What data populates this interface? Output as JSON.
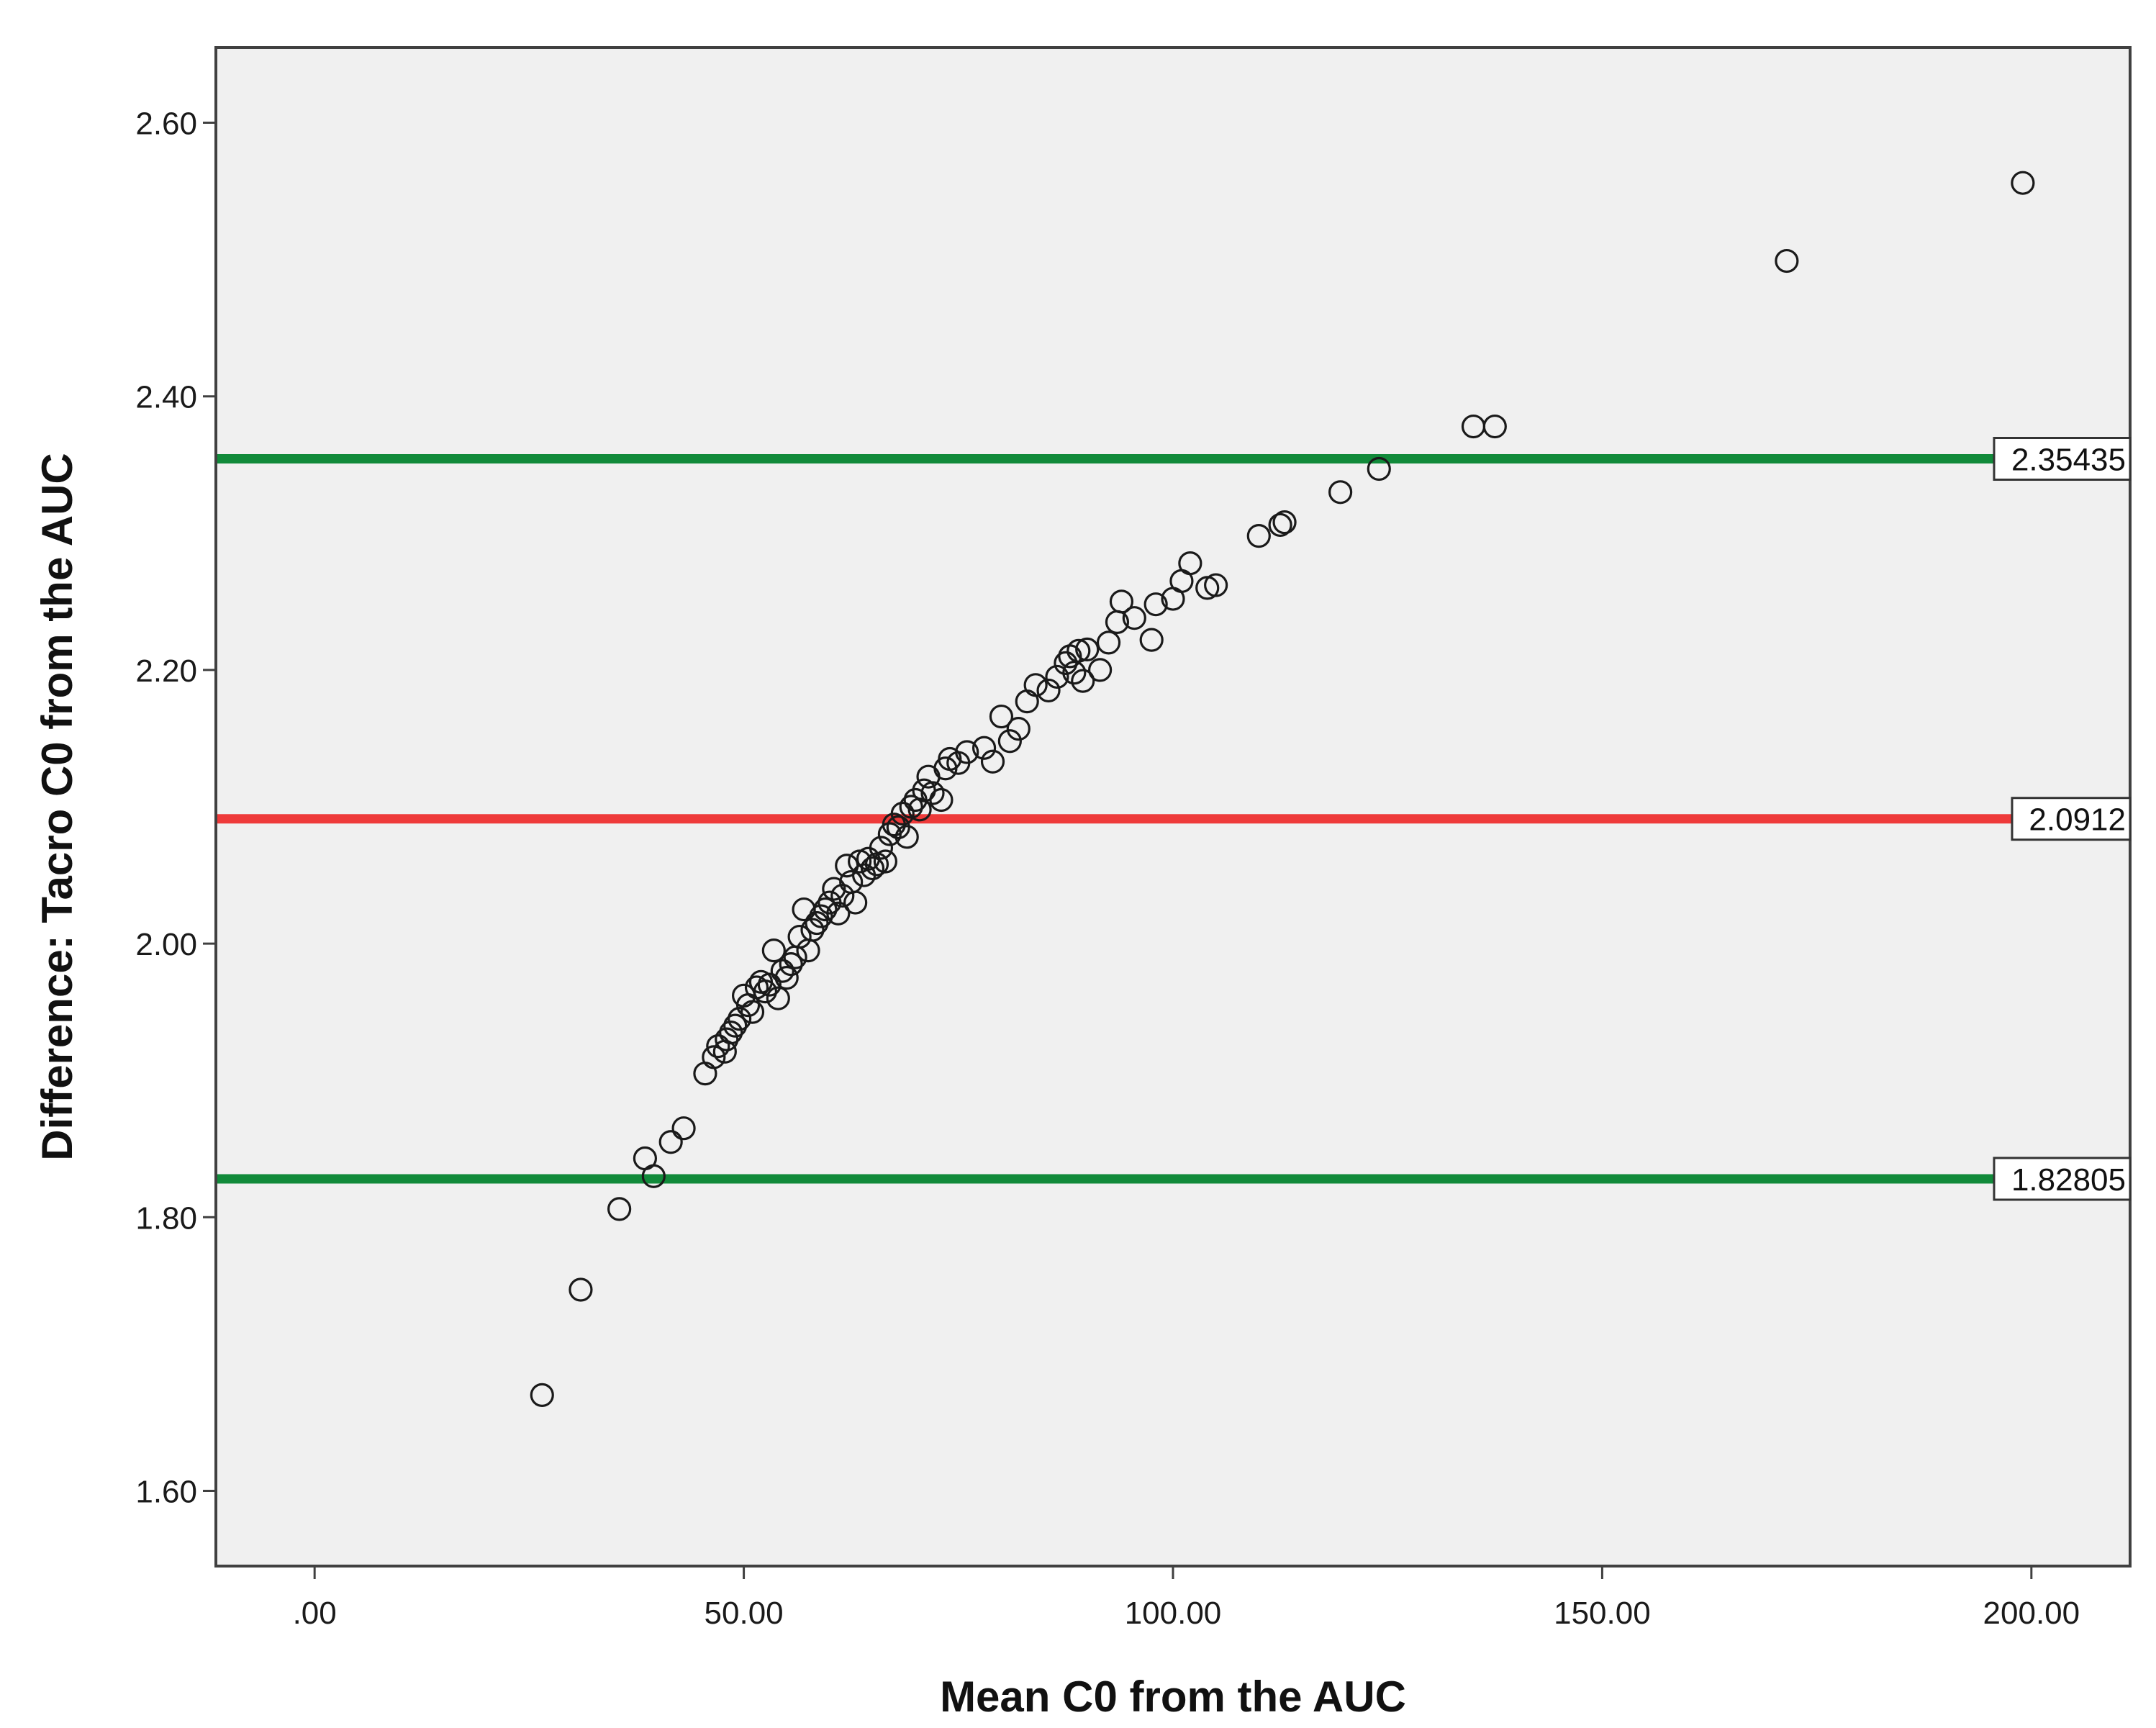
{
  "chart_data": {
    "type": "scatter",
    "title": "",
    "xlabel": "Mean C0 from the AUC",
    "ylabel": "Difference: Tacro C0 from the AUC",
    "xlim": [
      -11.5,
      211.5
    ],
    "ylim": [
      1.545,
      2.655
    ],
    "x_ticks": [
      0,
      50,
      100,
      150,
      200
    ],
    "x_tick_labels": [
      ".00",
      "50.00",
      "100.00",
      "150.00",
      "200.00"
    ],
    "y_ticks": [
      1.6,
      1.8,
      2.0,
      2.2,
      2.4,
      2.6
    ],
    "y_tick_labels": [
      "1.60",
      "1.80",
      "2.00",
      "2.20",
      "2.40",
      "2.60"
    ],
    "grid": false,
    "background_color": "#f0f0f0",
    "marker": "open-circle",
    "reference_lines": [
      {
        "value": 2.35435,
        "label": "2.35435",
        "color": "#118a3a"
      },
      {
        "value": 2.0912,
        "label": "2.0912",
        "color": "#ee3a3a"
      },
      {
        "value": 1.82805,
        "label": "1.82805",
        "color": "#118a3a"
      }
    ],
    "points": [
      [
        26.5,
        1.67
      ],
      [
        31.0,
        1.747
      ],
      [
        35.5,
        1.806
      ],
      [
        38.5,
        1.843
      ],
      [
        39.5,
        1.83
      ],
      [
        41.5,
        1.855
      ],
      [
        43.0,
        1.865
      ],
      [
        45.5,
        1.905
      ],
      [
        46.5,
        1.917
      ],
      [
        47.0,
        1.925
      ],
      [
        47.8,
        1.921
      ],
      [
        48.0,
        1.93
      ],
      [
        48.5,
        1.935
      ],
      [
        49.0,
        1.94
      ],
      [
        49.5,
        1.945
      ],
      [
        50.0,
        1.962
      ],
      [
        50.5,
        1.955
      ],
      [
        51.0,
        1.95
      ],
      [
        51.5,
        1.968
      ],
      [
        52.0,
        1.972
      ],
      [
        52.5,
        1.965
      ],
      [
        53.0,
        1.97
      ],
      [
        53.5,
        1.995
      ],
      [
        54.0,
        1.96
      ],
      [
        54.5,
        1.98
      ],
      [
        55.0,
        1.975
      ],
      [
        55.5,
        1.985
      ],
      [
        56.0,
        1.99
      ],
      [
        56.5,
        2.005
      ],
      [
        57.0,
        2.025
      ],
      [
        57.5,
        1.995
      ],
      [
        58.0,
        2.01
      ],
      [
        58.5,
        2.015
      ],
      [
        59.0,
        2.02
      ],
      [
        59.5,
        2.025
      ],
      [
        60.0,
        2.03
      ],
      [
        60.5,
        2.04
      ],
      [
        61.0,
        2.022
      ],
      [
        61.5,
        2.035
      ],
      [
        62.0,
        2.057
      ],
      [
        62.5,
        2.045
      ],
      [
        63.0,
        2.03
      ],
      [
        63.5,
        2.06
      ],
      [
        64.0,
        2.05
      ],
      [
        64.5,
        2.062
      ],
      [
        65.0,
        2.055
      ],
      [
        65.5,
        2.058
      ],
      [
        66.0,
        2.07
      ],
      [
        66.5,
        2.06
      ],
      [
        67.0,
        2.08
      ],
      [
        67.5,
        2.087
      ],
      [
        68.0,
        2.085
      ],
      [
        68.5,
        2.095
      ],
      [
        69.0,
        2.078
      ],
      [
        69.5,
        2.1
      ],
      [
        70.0,
        2.105
      ],
      [
        70.5,
        2.098
      ],
      [
        71.0,
        2.112
      ],
      [
        71.5,
        2.122
      ],
      [
        72.0,
        2.11
      ],
      [
        73.0,
        2.105
      ],
      [
        73.5,
        2.128
      ],
      [
        74.0,
        2.135
      ],
      [
        75.0,
        2.132
      ],
      [
        76.0,
        2.14
      ],
      [
        78.0,
        2.143
      ],
      [
        79.0,
        2.133
      ],
      [
        80.0,
        2.166
      ],
      [
        81.0,
        2.148
      ],
      [
        82.0,
        2.157
      ],
      [
        83.0,
        2.177
      ],
      [
        84.0,
        2.189
      ],
      [
        85.5,
        2.185
      ],
      [
        86.5,
        2.195
      ],
      [
        87.5,
        2.205
      ],
      [
        88.0,
        2.21
      ],
      [
        88.5,
        2.198
      ],
      [
        89.0,
        2.214
      ],
      [
        89.5,
        2.192
      ],
      [
        90.0,
        2.215
      ],
      [
        91.5,
        2.2
      ],
      [
        92.5,
        2.22
      ],
      [
        93.5,
        2.235
      ],
      [
        94.0,
        2.25
      ],
      [
        95.5,
        2.238
      ],
      [
        97.5,
        2.222
      ],
      [
        98.0,
        2.248
      ],
      [
        100.0,
        2.252
      ],
      [
        101.0,
        2.265
      ],
      [
        102.0,
        2.278
      ],
      [
        104.0,
        2.26
      ],
      [
        105.0,
        2.262
      ],
      [
        110.0,
        2.298
      ],
      [
        112.5,
        2.306
      ],
      [
        113.0,
        2.308
      ],
      [
        119.5,
        2.33
      ],
      [
        124.0,
        2.347
      ],
      [
        135.0,
        2.378
      ],
      [
        137.5,
        2.378
      ],
      [
        171.5,
        2.499
      ],
      [
        199.0,
        2.556
      ]
    ]
  }
}
